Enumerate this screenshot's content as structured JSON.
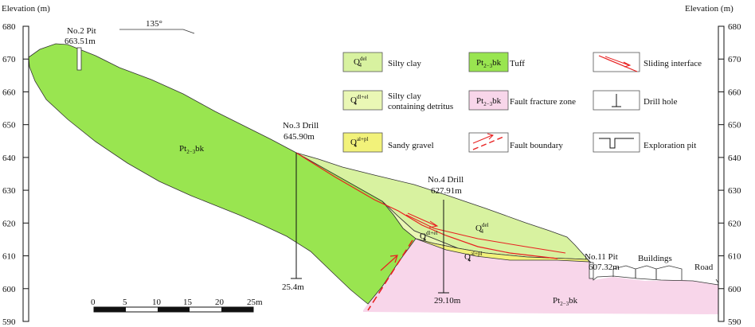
{
  "axes": {
    "left_title": "Elevation (m)",
    "right_title": "Elevation (m)",
    "ticks": [
      "680",
      "670",
      "660",
      "650",
      "640",
      "630",
      "620",
      "610",
      "600",
      "590"
    ]
  },
  "orientation": "135°",
  "pits": {
    "no2": {
      "name": "No.2 Pit",
      "elev": "663.51m"
    },
    "no11": {
      "name": "No.11 Pit",
      "elev": "607.32m"
    }
  },
  "drills": {
    "no3": {
      "name": "No.3 Drill",
      "elev": "645.90m",
      "depth": "25.4m"
    },
    "no4": {
      "name": "No.4 Drill",
      "elev": "627.91m",
      "depth": "29.10m"
    }
  },
  "units": {
    "q4_base": "Q",
    "q4_sub": "4",
    "del_sup": "del",
    "dlel_sup": "dl+el",
    "alpl_sup": "al+pl",
    "pt_base": "Pt",
    "pt_sub": "2−3",
    "pt_suffix": "bk"
  },
  "labels": {
    "buildings": "Buildings",
    "road": "Road"
  },
  "legend": {
    "silty_clay": "Silty clay",
    "silty_clay_detritus_1": "Silty clay",
    "silty_clay_detritus_2": "containing detritus",
    "sandy_gravel": "Sandy gravel",
    "tuff": "Tuff",
    "fault_fracture_zone": "Fault fracture zone",
    "fault_boundary": "Fault boundary",
    "sliding_interface": "Sliding interface",
    "drill_hole": "Drill hole",
    "exploration_pit": "Exploration pit"
  },
  "scale_bar": {
    "labels": [
      "0",
      "5",
      "10",
      "15",
      "20",
      "25m"
    ]
  },
  "colors": {
    "tuff": "#99e550",
    "silty_clay": "#d8f2a0",
    "detritus": "#eaf7b5",
    "sandy_gravel": "#f2f27a",
    "fault_zone": "#f8d6ea",
    "sliding": "#e82020"
  }
}
